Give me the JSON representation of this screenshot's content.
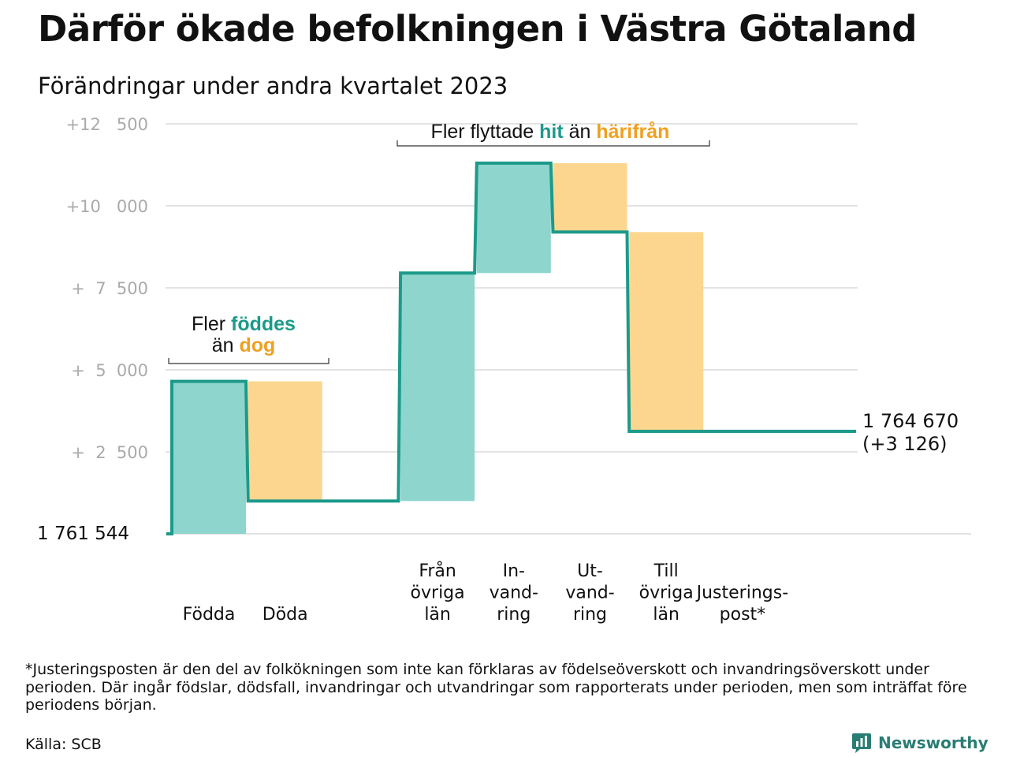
{
  "header": {
    "title": "Därför ökade befolkningen i Västra Götaland",
    "subtitle": "Förändringar under andra kvartalet 2023"
  },
  "chart_data": {
    "type": "bar",
    "subtype": "waterfall",
    "baseline_label": "1  761   544",
    "baseline": 1761544,
    "ylim": [
      0,
      12500
    ],
    "y_ticks": [
      {
        "value": 2500,
        "label": "+  2  500"
      },
      {
        "value": 5000,
        "label": "+  5  000"
      },
      {
        "value": 7500,
        "label": "+  7  500"
      },
      {
        "value": 10000,
        "label": "+10   000"
      },
      {
        "value": 12500,
        "label": "+12   500"
      }
    ],
    "steps": [
      {
        "key": "fodda",
        "lines": [
          "Födda"
        ],
        "change": 4650,
        "kind": "in"
      },
      {
        "key": "doda",
        "lines": [
          "Döda"
        ],
        "change": -3650,
        "kind": "out"
      },
      {
        "key": "gap",
        "lines": [],
        "change": 0,
        "kind": "flat"
      },
      {
        "key": "fran-ovriga-lan",
        "lines": [
          "Från",
          "övriga",
          "län"
        ],
        "change": 6950,
        "kind": "in"
      },
      {
        "key": "invandring",
        "lines": [
          "In-",
          "vand-",
          "ring"
        ],
        "change": 3350,
        "kind": "in"
      },
      {
        "key": "utvandring",
        "lines": [
          "Ut-",
          "vand-",
          "ring"
        ],
        "change": -2100,
        "kind": "out"
      },
      {
        "key": "till-ovriga-lan",
        "lines": [
          "Till",
          "övriga",
          "län"
        ],
        "change": -6074,
        "kind": "out"
      },
      {
        "key": "justeringspost",
        "lines": [
          "Justerings-",
          "post*"
        ],
        "change": 0,
        "kind": "flat"
      }
    ],
    "end_total": "1 764 670",
    "end_change": "(+3 126)",
    "annotations": {
      "births": {
        "prefix": "Fler ",
        "hit": "föddes",
        "line2_prefix": "än ",
        "hit2": "dog"
      },
      "migration": {
        "prefix": "Fler flyttade ",
        "hit": "hit",
        "middle": " än ",
        "hit2": "härifrån"
      }
    },
    "colors": {
      "in_fill": "#8dd5cd",
      "out_fill": "#fcd68f",
      "line": "#1c9a8a",
      "grid": "#e3e3e3"
    }
  },
  "footnote": "*Justeringsposten är den del av folkökningen som inte kan förklaras av födelseöverskott och invandringsöverskott under perioden. Där ingår födslar, dödsfall, invandringar och utvandringar som rapporterats under perioden, men som inträffat före periodens början.",
  "source": "Källa: SCB",
  "brand": {
    "name": "Newsworthy",
    "icon": "bar-chart-bubble-icon"
  }
}
